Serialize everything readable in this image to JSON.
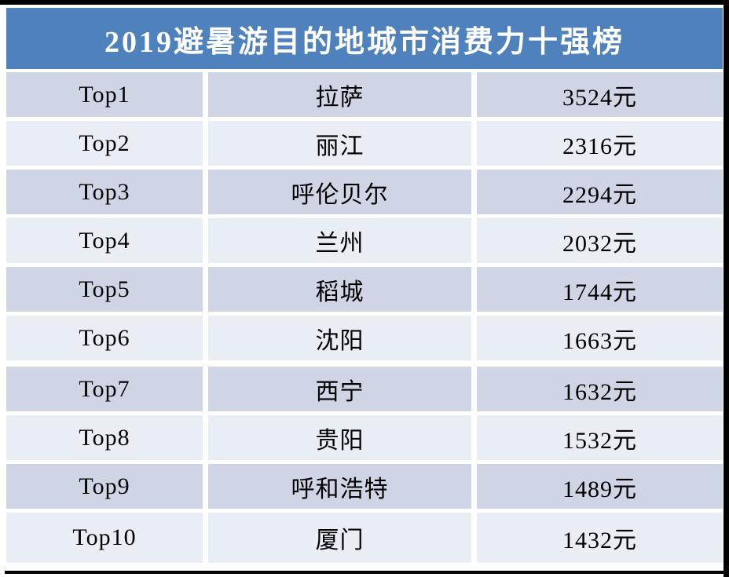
{
  "table": {
    "title": "2019避暑游目的地城市消费力十强榜",
    "rows": [
      {
        "rank": "Top1",
        "city": "拉萨",
        "price": "3524元"
      },
      {
        "rank": "Top2",
        "city": "丽江",
        "price": "2316元"
      },
      {
        "rank": "Top3",
        "city": "呼伦贝尔",
        "price": "2294元"
      },
      {
        "rank": "Top4",
        "city": "兰州",
        "price": "2032元"
      },
      {
        "rank": "Top5",
        "city": "稻城",
        "price": "1744元"
      },
      {
        "rank": "Top6",
        "city": "沈阳",
        "price": "1663元"
      },
      {
        "rank": "Top7",
        "city": "西宁",
        "price": "1632元"
      },
      {
        "rank": "Top8",
        "city": "贵阳",
        "price": "1532元"
      },
      {
        "rank": "Top9",
        "city": "呼和浩特",
        "price": "1489元"
      },
      {
        "rank": "Top10",
        "city": "厦门",
        "price": "1432元"
      }
    ],
    "colors": {
      "header_bg": "#4F81BD",
      "header_text": "#FFFFFF",
      "row_odd_bg": "#CFD5E4",
      "row_even_bg": "#E9EDF4",
      "cell_text": "#000000"
    }
  },
  "chart_data": {
    "type": "table",
    "title": "2019避暑游目的地城市消费力十强榜",
    "categories": [
      "拉萨",
      "丽江",
      "呼伦贝尔",
      "兰州",
      "稻城",
      "沈阳",
      "西宁",
      "贵阳",
      "呼和浩特",
      "厦门"
    ],
    "ranks": [
      "Top1",
      "Top2",
      "Top3",
      "Top4",
      "Top5",
      "Top6",
      "Top7",
      "Top8",
      "Top9",
      "Top10"
    ],
    "values": [
      3524,
      2316,
      2294,
      2032,
      1744,
      1663,
      1632,
      1532,
      1489,
      1432
    ],
    "unit": "元",
    "legend_position": "none",
    "grid": false
  }
}
